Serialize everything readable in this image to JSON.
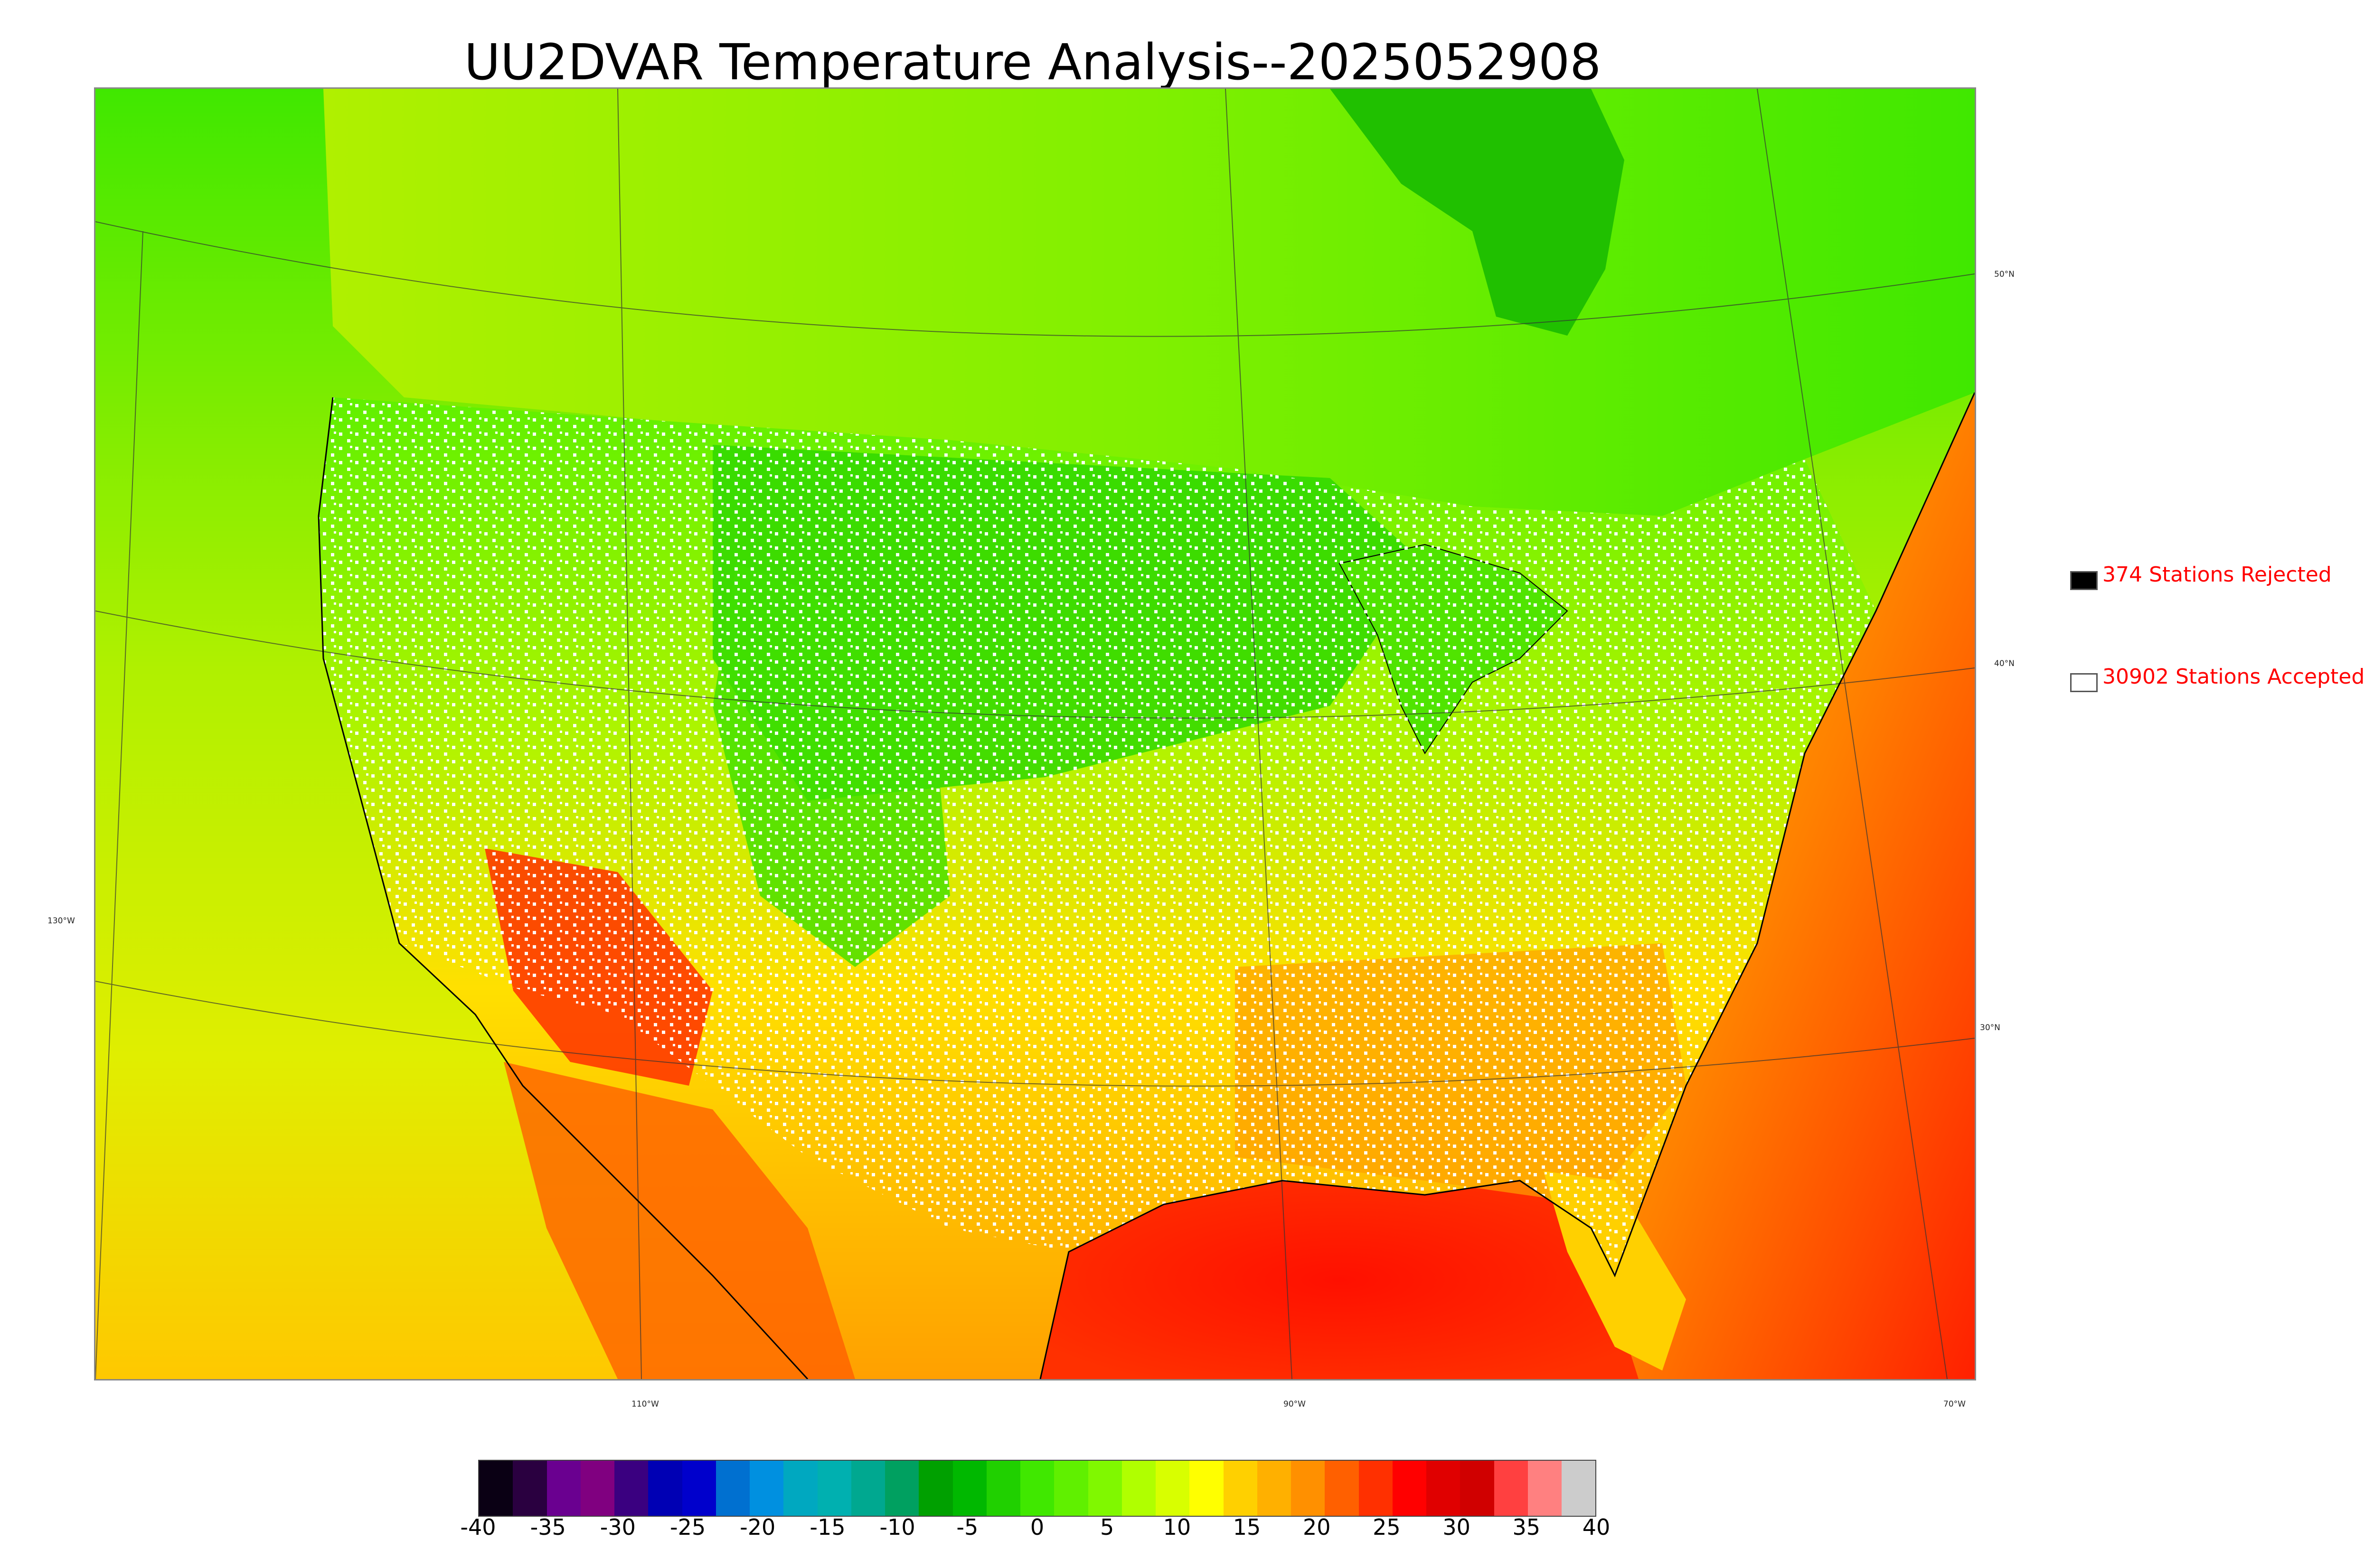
{
  "title": "UU2DVAR Temperature Analysis--2025052908",
  "graticule": {
    "latitudes": [
      "50°N",
      "40°N",
      "30°N"
    ],
    "longitudes": [
      "130°W",
      "110°W",
      "90°W",
      "70°W"
    ]
  },
  "legend": {
    "rejected": {
      "label": "374 Stations Rejected",
      "swatch_color": "#000000"
    },
    "accepted": {
      "label": "30902 Stations Accepted",
      "swatch_color": "#ffffff"
    }
  },
  "colorbar": {
    "ticks": [
      "-40",
      "-35",
      "-30",
      "-25",
      "-20",
      "-15",
      "-10",
      "-5",
      "0",
      "5",
      "10",
      "15",
      "20",
      "25",
      "30",
      "35",
      "40"
    ],
    "colors": [
      "#0a0014",
      "#2a0040",
      "#6a0090",
      "#800080",
      "#3a0080",
      "#0000b4",
      "#0000cc",
      "#0070d0",
      "#0090e0",
      "#00a8c0",
      "#00b0b0",
      "#00a890",
      "#00a060",
      "#00a000",
      "#00b800",
      "#20d000",
      "#40e800",
      "#60f000",
      "#80f800",
      "#b0ff00",
      "#d8ff00",
      "#ffff00",
      "#ffd000",
      "#ffb000",
      "#ff9000",
      "#ff6000",
      "#ff3000",
      "#ff0000",
      "#e00000",
      "#d00000",
      "#ff4040",
      "#ff8080",
      "#cccccc"
    ],
    "unit_range": [
      -40,
      40
    ]
  },
  "map_colors": {
    "ocean_west": "#c8e600",
    "pacific_north": "#40e000",
    "gulf": "#ff2000",
    "atlantic": "#ff5000",
    "canada": "#60f000",
    "hudson_bay": "#20c000",
    "plains": "#40e000",
    "southwest": "#ff7000",
    "desert_hot": "#ff1000",
    "southeast": "#ffb000",
    "midwest": "#d0f000",
    "station_accepted": "#ffffff",
    "station_rejected": "#000000",
    "coastline": "#000000"
  }
}
